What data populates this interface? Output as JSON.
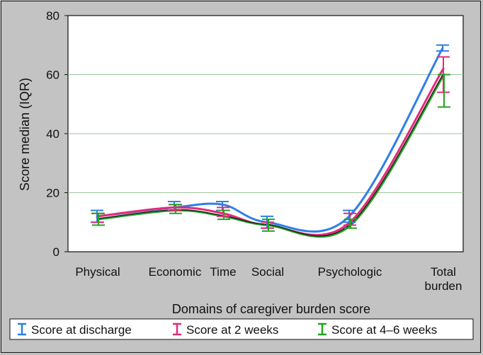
{
  "chart_data": {
    "type": "line",
    "xlabel": "Domains of caregiver burden score",
    "ylabel": "Score median (IQR)",
    "ylim": [
      0,
      80
    ],
    "yticks": [
      0,
      20,
      40,
      60,
      80
    ],
    "grid": true,
    "legend_position": "bottom",
    "categories": [
      "Physical",
      "Economic",
      "Time",
      "Social",
      "Psychologic",
      "Total burden"
    ],
    "series": [
      {
        "name": "Score at discharge",
        "color": "#2e7fe6",
        "values": [
          12,
          15,
          16,
          10,
          12,
          69
        ],
        "iqr": [
          [
            10,
            14
          ],
          [
            14,
            17
          ],
          [
            14,
            17
          ],
          [
            8,
            12
          ],
          [
            10,
            14
          ],
          [
            68,
            70
          ]
        ]
      },
      {
        "name": "Score at 2 weeks",
        "color": "#e32b7a",
        "values": [
          12,
          15,
          13,
          9,
          10,
          62
        ],
        "iqr": [
          [
            10,
            13
          ],
          [
            14,
            16
          ],
          [
            12,
            15
          ],
          [
            8,
            10
          ],
          [
            9,
            13
          ],
          [
            54,
            66
          ]
        ]
      },
      {
        "name": "Score at 4–6 weeks",
        "color": "#23a324",
        "values": [
          11,
          14,
          12,
          9,
          9,
          60
        ],
        "iqr": [
          [
            9,
            13
          ],
          [
            13,
            16
          ],
          [
            11,
            14
          ],
          [
            7,
            11
          ],
          [
            8,
            11
          ],
          [
            49,
            60
          ]
        ]
      }
    ]
  }
}
